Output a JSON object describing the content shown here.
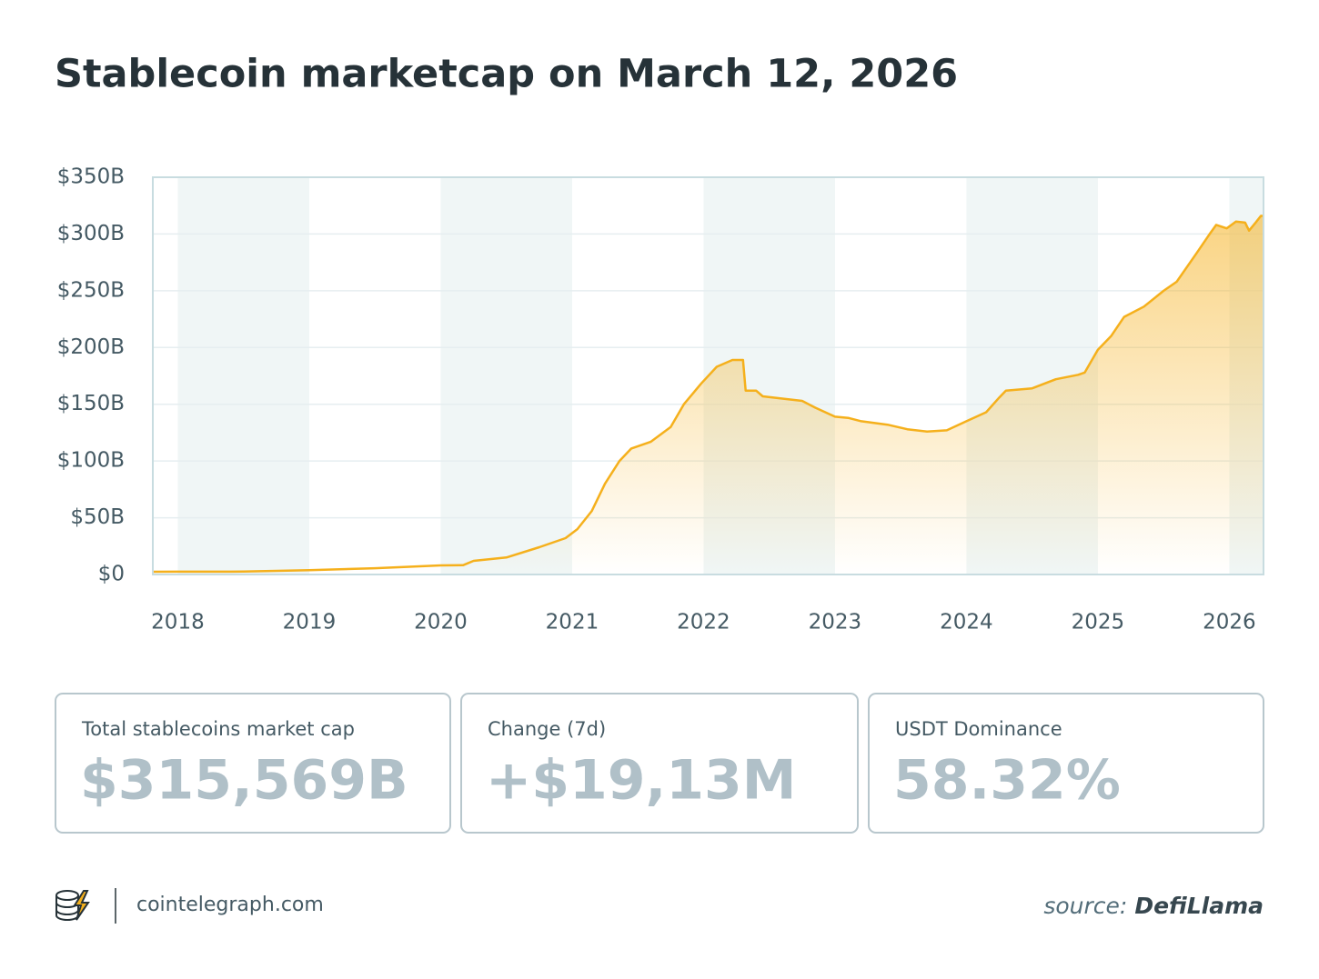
{
  "chart_data": {
    "type": "area-line",
    "title": "Stablecoin marketcap on March 12, 2026",
    "x": [
      2017.81,
      2018.0,
      2018.5,
      2019.0,
      2019.5,
      2020.0,
      2020.17,
      2020.25,
      2020.5,
      2020.75,
      2020.95,
      2021.04,
      2021.15,
      2021.25,
      2021.36,
      2021.45,
      2021.6,
      2021.75,
      2021.85,
      2021.98,
      2022.1,
      2022.22,
      2022.3,
      2022.32,
      2022.4,
      2022.45,
      2022.6,
      2022.75,
      2022.85,
      2023.0,
      2023.1,
      2023.2,
      2023.4,
      2023.55,
      2023.7,
      2023.85,
      2024.0,
      2024.15,
      2024.25,
      2024.3,
      2024.5,
      2024.68,
      2024.85,
      2024.9,
      2025.0,
      2025.1,
      2025.2,
      2025.35,
      2025.5,
      2025.6,
      2025.75,
      2025.85,
      2025.9,
      2025.98,
      2026.05,
      2026.12,
      2026.15,
      2026.2,
      2026.24,
      2026.26
    ],
    "values": [
      2.4,
      2.5,
      2.6,
      3.8,
      5.5,
      8,
      8.2,
      12,
      15,
      24,
      32,
      40,
      56,
      80,
      100,
      111,
      117,
      130,
      150,
      168,
      183,
      189,
      189,
      162,
      162,
      157,
      155,
      153,
      147,
      139,
      138,
      135,
      132,
      128,
      126,
      127,
      135,
      143,
      156,
      162,
      164,
      172,
      176,
      178,
      198,
      210,
      227,
      236,
      250,
      258,
      283,
      300,
      308,
      305,
      311,
      310,
      303,
      310,
      316,
      316
    ],
    "color": "#f5b01c",
    "xlim": [
      2017.81,
      2026.26
    ],
    "xticks": [
      2018,
      2019,
      2020,
      2021,
      2022,
      2023,
      2024,
      2025,
      2026
    ],
    "ylim": [
      0,
      350
    ],
    "yticks": [
      {
        "value": 0,
        "label": "$0"
      },
      {
        "value": 50,
        "label": "$50B"
      },
      {
        "value": 100,
        "label": "$100B"
      },
      {
        "value": 150,
        "label": "$150B"
      },
      {
        "value": 200,
        "label": "$200B"
      },
      {
        "value": 250,
        "label": "$250B"
      },
      {
        "value": 300,
        "label": "$300B"
      },
      {
        "value": 350,
        "label": "$350B"
      }
    ],
    "grid": true,
    "year_bands": true
  },
  "cards": [
    {
      "label": "Total stablecoins market cap",
      "value": "$315,569B"
    },
    {
      "label": "Change (7d)",
      "value": "+$19,13M"
    },
    {
      "label": "USDT Dominance",
      "value": "58.32%"
    }
  ],
  "footer": {
    "site": "cointelegraph.com",
    "source_prefix": "source:",
    "source": "DefiLlama"
  }
}
